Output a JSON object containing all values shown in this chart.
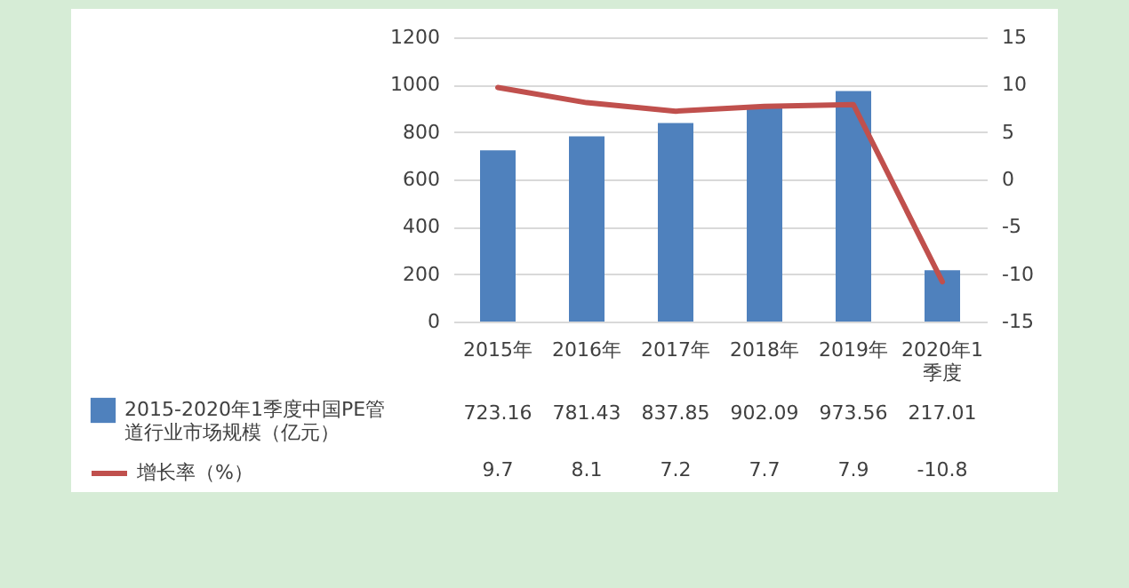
{
  "chart_data": {
    "type": "bar",
    "categories": [
      "2015年",
      "2016年",
      "2017年",
      "2018年",
      "2019年",
      "2020年1季度"
    ],
    "series": [
      {
        "name": "2015-2020年1季度中国PE管道行业市场规模（亿元）",
        "color": "#4f81bd",
        "values": [
          723.16,
          781.43,
          837.85,
          902.09,
          973.56,
          217.01
        ]
      },
      {
        "name": "增长率（%）",
        "type": "line",
        "axis": "y2",
        "color": "#c0504d",
        "values": [
          9.7,
          8.1,
          7.2,
          7.7,
          7.9,
          -10.8
        ]
      }
    ],
    "ylim": [
      0,
      1200
    ],
    "yticks": [
      0,
      200,
      400,
      600,
      800,
      1000,
      1200
    ],
    "y2lim": [
      -15,
      15
    ],
    "y2ticks": [
      -15,
      -10,
      -5,
      0,
      5,
      10,
      15
    ],
    "grid": "y",
    "legend": "bottom left",
    "marker": "none",
    "data_labels": true
  }
}
